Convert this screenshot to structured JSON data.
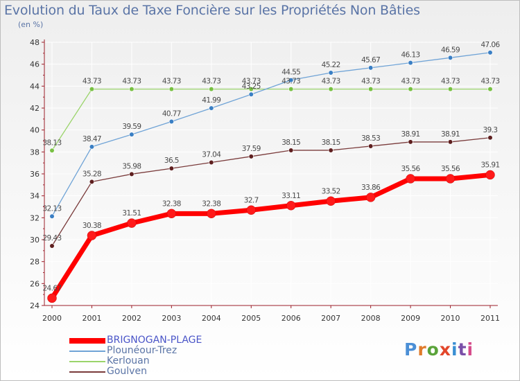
{
  "title": "Evolution du Taux de Taxe Foncière sur les Propriétés Non Bâties",
  "subtitle": "(en %)",
  "logo": "Proxiti",
  "colors": {
    "title": "#5a74a6",
    "axis": "#9d1f2a",
    "grid": "#ffffff",
    "logo_letters": [
      "#4b8fd6",
      "#e07b2b",
      "#5aa33a",
      "#e2462a",
      "#3a8fd3",
      "#7a4fa8",
      "#d64c8b"
    ]
  },
  "chart_data": {
    "type": "line",
    "title": "Evolution du Taux de Taxe Foncière sur les Propriétés Non Bâties",
    "ylabel": "(en %)",
    "xlabel": "",
    "x": [
      "2000",
      "2001",
      "2002",
      "2003",
      "2004",
      "2005",
      "2006",
      "2007",
      "2008",
      "2009",
      "2010",
      "2011"
    ],
    "ylim": [
      24,
      48
    ],
    "yticks": [
      "24",
      "26",
      "28",
      "30",
      "32",
      "34",
      "36",
      "38",
      "40",
      "42",
      "44",
      "46",
      "48"
    ],
    "grid": true,
    "legend_position": "bottom-left",
    "series": [
      {
        "name": "BRIGNOGAN-PLAGE",
        "color": "#ff0000",
        "marker_color": "#ff1a1a",
        "values": [
          24.67,
          30.38,
          31.51,
          32.38,
          32.38,
          32.7,
          33.11,
          33.52,
          33.86,
          35.56,
          35.56,
          35.91
        ],
        "labels": [
          "24.67",
          "30.38",
          "31.51",
          "32.38",
          "32.38",
          "32.7",
          "33.11",
          "33.52",
          "33.86",
          "35.56",
          "35.56",
          "35.91"
        ]
      },
      {
        "name": "Plounéour-Trez",
        "color": "#6fa3d6",
        "marker_color": "#3a7fc4",
        "values": [
          32.13,
          38.47,
          39.59,
          40.77,
          41.99,
          43.25,
          44.55,
          45.22,
          45.67,
          46.13,
          46.59,
          47.06
        ],
        "labels": [
          "32.13",
          "38.47",
          "39.59",
          "40.77",
          "41.99",
          "43.25",
          "44.55",
          "45.22",
          "45.67",
          "46.13",
          "46.59",
          "47.06"
        ]
      },
      {
        "name": "Kerlouan",
        "color": "#9ad46a",
        "marker_color": "#78c043",
        "values": [
          38.13,
          43.73,
          43.73,
          43.73,
          43.73,
          43.73,
          43.73,
          43.73,
          43.73,
          43.73,
          43.73,
          43.73
        ],
        "labels": [
          "38.13",
          "43.73",
          "43.73",
          "43.73",
          "43.73",
          "43.73",
          "43.73",
          "43.73",
          "43.73",
          "43.73",
          "43.73",
          "43.73"
        ]
      },
      {
        "name": "Goulven",
        "color": "#7a3b3b",
        "marker_color": "#5e1f1f",
        "values": [
          29.43,
          35.28,
          35.98,
          36.5,
          37.04,
          37.59,
          38.15,
          38.15,
          38.53,
          38.91,
          38.91,
          39.3
        ],
        "labels": [
          "29.43",
          "35.28",
          "35.98",
          "36.5",
          "37.04",
          "37.59",
          "38.15",
          "38.15",
          "38.53",
          "38.91",
          "38.91",
          "39.3"
        ]
      }
    ]
  }
}
